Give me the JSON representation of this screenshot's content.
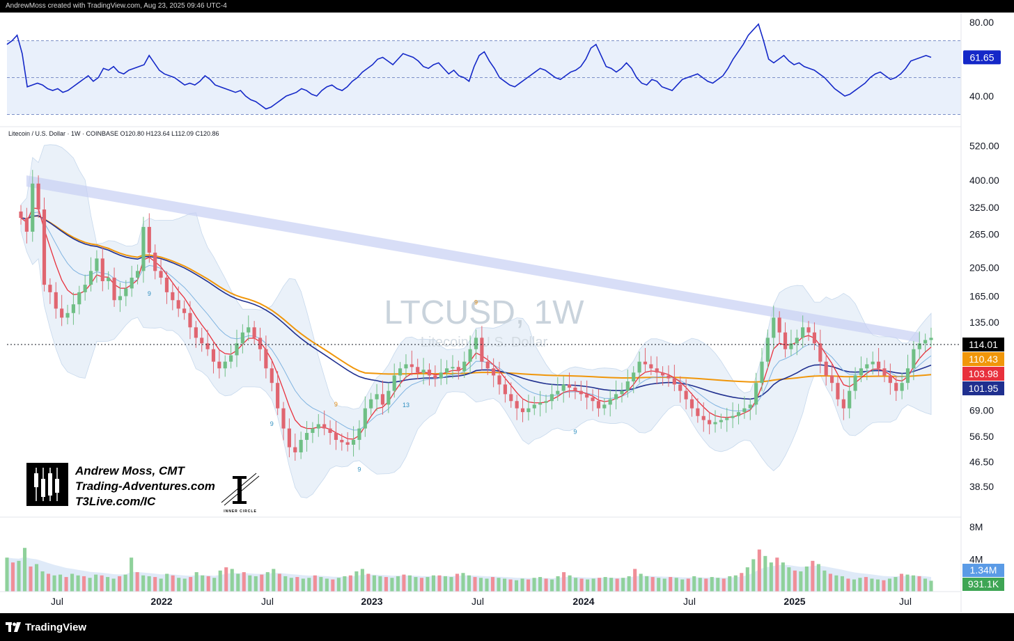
{
  "header": {
    "credit": "AndrewMoss created with TradingView.com, Aug 23, 2025 09:46 UTC-4"
  },
  "footer": {
    "brand": "TradingView"
  },
  "watermark": {
    "symbol": "LTCUSD, 1W",
    "name": "Litecoin / U.S. Dollar"
  },
  "legend": {
    "text": "Litecoin / U.S. Dollar · 1W · COINBASE  O120.80  H123.64  L112.09  C120.86"
  },
  "branding": {
    "author": "Andrew Moss, CMT",
    "site": "Trading-Adventures.com",
    "link": "T3Live.com/IC",
    "logo_caption": "INNER CIRCLE"
  },
  "colors": {
    "up": "#6fbf85",
    "down": "#e06570",
    "ema_short": "#e8303c",
    "ema_mid": "#1f2f8f",
    "sma_long": "#f0960a",
    "rsi": "#1428c8",
    "bands": "#e8f0f8",
    "trend": "#c8d0f4",
    "vol_up": "#8fd19b",
    "vol_down": "#f08e98"
  },
  "chart_data": [
    {
      "type": "line",
      "name": "RSI",
      "axis_ticks": [
        "80.00",
        "40.00"
      ],
      "levels": [
        70,
        50,
        30
      ],
      "last_value": "61.65",
      "x_axis": "weekly, Apr 2021 – Aug 2025",
      "values": [
        68,
        70,
        73,
        63,
        45,
        46,
        47,
        46,
        44,
        43,
        44,
        42,
        43,
        45,
        47,
        49,
        51,
        48,
        50,
        55,
        54,
        56,
        53,
        52,
        54,
        55,
        56,
        57,
        62,
        58,
        54,
        52,
        51,
        50,
        48,
        46,
        47,
        46,
        48,
        51,
        49,
        46,
        45,
        44,
        43,
        42,
        43,
        40,
        38,
        37,
        35,
        33,
        34,
        36,
        38,
        40,
        41,
        42,
        44,
        43,
        41,
        40,
        43,
        45,
        46,
        44,
        43,
        45,
        48,
        50,
        53,
        55,
        57,
        60,
        61,
        59,
        57,
        60,
        63,
        62,
        61,
        59,
        56,
        55,
        57,
        58,
        55,
        52,
        54,
        51,
        50,
        48,
        56,
        62,
        64,
        59,
        55,
        50,
        48,
        46,
        45,
        47,
        49,
        51,
        53,
        55,
        54,
        52,
        50,
        49,
        51,
        53,
        54,
        56,
        60,
        66,
        68,
        62,
        56,
        55,
        53,
        55,
        58,
        55,
        50,
        47,
        46,
        49,
        48,
        45,
        44,
        43,
        46,
        49,
        50,
        51,
        52,
        50,
        48,
        47,
        49,
        51,
        55,
        60,
        64,
        68,
        73,
        76,
        79,
        70,
        60,
        58,
        60,
        62,
        59,
        57,
        58,
        56,
        55,
        54,
        52,
        50,
        47,
        44,
        42,
        40,
        41,
        43,
        45,
        47,
        50,
        52,
        53,
        51,
        49,
        50,
        52,
        55,
        59,
        60,
        61,
        62,
        61
      ]
    },
    {
      "type": "candlestick",
      "name": "Litecoin / U.S. Dollar",
      "symbol": "LTCUSD",
      "interval": "1W",
      "exchange": "COINBASE",
      "scale": "log",
      "last_bar": {
        "open": 120.8,
        "high": 123.64,
        "low": 112.09,
        "close": 120.86
      },
      "y_ticks": [
        "520.00",
        "400.00",
        "325.00",
        "265.00",
        "205.00",
        "165.00",
        "135.00",
        "69.00",
        "56.50",
        "46.50",
        "38.50"
      ],
      "x_ticks": [
        "Jul",
        "2022",
        "Jul",
        "2023",
        "Jul",
        "2024",
        "Jul",
        "2025",
        "Jul"
      ],
      "price_labels": [
        {
          "label": "114.01",
          "series": "last price"
        },
        {
          "label": "110.43",
          "series": "200-week SMA"
        },
        {
          "label": "103.98",
          "series": "10-week EMA"
        },
        {
          "label": "101.95",
          "series": "40-week EMA"
        }
      ],
      "td_markers": [
        "9",
        "9",
        "9",
        "9",
        "13",
        "9",
        "9"
      ],
      "closes": [
        300,
        270,
        390,
        320,
        180,
        170,
        150,
        140,
        145,
        155,
        170,
        180,
        200,
        220,
        185,
        190,
        160,
        165,
        175,
        190,
        200,
        280,
        230,
        200,
        190,
        170,
        160,
        150,
        145,
        130,
        120,
        115,
        110,
        100,
        95,
        100,
        105,
        115,
        125,
        130,
        120,
        110,
        95,
        85,
        70,
        60,
        52,
        50,
        55,
        58,
        60,
        62,
        60,
        58,
        55,
        54,
        53,
        55,
        60,
        70,
        75,
        78,
        72,
        80,
        90,
        95,
        98,
        96,
        92,
        94,
        90,
        88,
        92,
        95,
        96,
        93,
        100,
        110,
        120,
        100,
        95,
        90,
        84,
        78,
        74,
        70,
        68,
        70,
        72,
        73,
        74,
        78,
        80,
        84,
        82,
        80,
        78,
        76,
        74,
        70,
        72,
        75,
        78,
        80,
        86,
        92,
        100,
        98,
        95,
        92,
        90,
        88,
        84,
        80,
        75,
        70,
        66,
        64,
        62,
        63,
        64,
        65,
        66,
        68,
        70,
        72,
        85,
        100,
        120,
        140,
        125,
        110,
        115,
        120,
        130,
        125,
        115,
        100,
        90,
        85,
        75,
        70,
        80,
        90,
        95,
        98,
        100,
        95,
        90,
        85,
        80,
        85,
        95,
        110,
        115,
        118,
        120
      ]
    },
    {
      "type": "bar",
      "name": "Volume",
      "y_ticks": [
        "8M",
        "4M"
      ],
      "labels": [
        "1.34M",
        "931.1K"
      ],
      "values_millions": [
        4.2,
        3.6,
        3.8,
        5.4,
        3.1,
        3.4,
        2.5,
        2.2,
        2.0,
        2.1,
        1.8,
        2.2,
        2.0,
        1.9,
        1.7,
        2.1,
        2.0,
        1.8,
        1.6,
        1.9,
        2.1,
        4.2,
        2.4,
        2.0,
        1.9,
        1.8,
        1.6,
        2.2,
        2.0,
        1.7,
        1.6,
        1.8,
        2.4,
        2.0,
        1.9,
        1.7,
        2.6,
        3.0,
        2.8,
        2.2,
        2.4,
        2.0,
        1.9,
        2.1,
        2.4,
        2.8,
        2.2,
        1.9,
        1.7,
        1.8,
        1.6,
        1.7,
        2.0,
        1.8,
        1.6,
        1.5,
        1.7,
        1.9,
        2.0,
        2.5,
        2.8,
        2.2,
        2.0,
        1.9,
        1.8,
        1.7,
        1.9,
        2.1,
        2.0,
        1.8,
        1.7,
        1.8,
        2.0,
        2.0,
        1.9,
        1.8,
        2.2,
        2.3,
        2.0,
        1.8,
        1.7,
        1.6,
        1.8,
        1.7,
        1.6,
        1.5,
        1.4,
        1.6,
        1.5,
        1.7,
        1.8,
        1.6,
        1.5,
        1.9,
        2.4,
        2.0,
        1.7,
        1.6,
        1.5,
        1.6,
        1.7,
        1.8,
        1.7,
        1.6,
        1.7,
        1.9,
        2.8,
        2.2,
        1.9,
        1.8,
        1.7,
        1.6,
        1.8,
        1.7,
        1.5,
        1.6,
        1.9,
        1.7,
        1.6,
        1.8,
        1.7,
        1.6,
        1.9,
        2.0,
        2.3,
        3.0,
        4.0,
        5.2,
        4.4,
        3.6,
        4.2,
        3.6,
        3.0,
        2.6,
        2.5,
        3.1,
        3.8,
        3.4,
        2.6,
        2.2,
        2.0,
        1.9,
        1.6,
        1.5,
        1.7,
        1.8,
        1.6,
        1.5,
        1.4,
        1.6,
        1.8,
        2.2,
        2.1,
        2.0,
        1.9,
        1.6,
        1.34
      ]
    }
  ]
}
